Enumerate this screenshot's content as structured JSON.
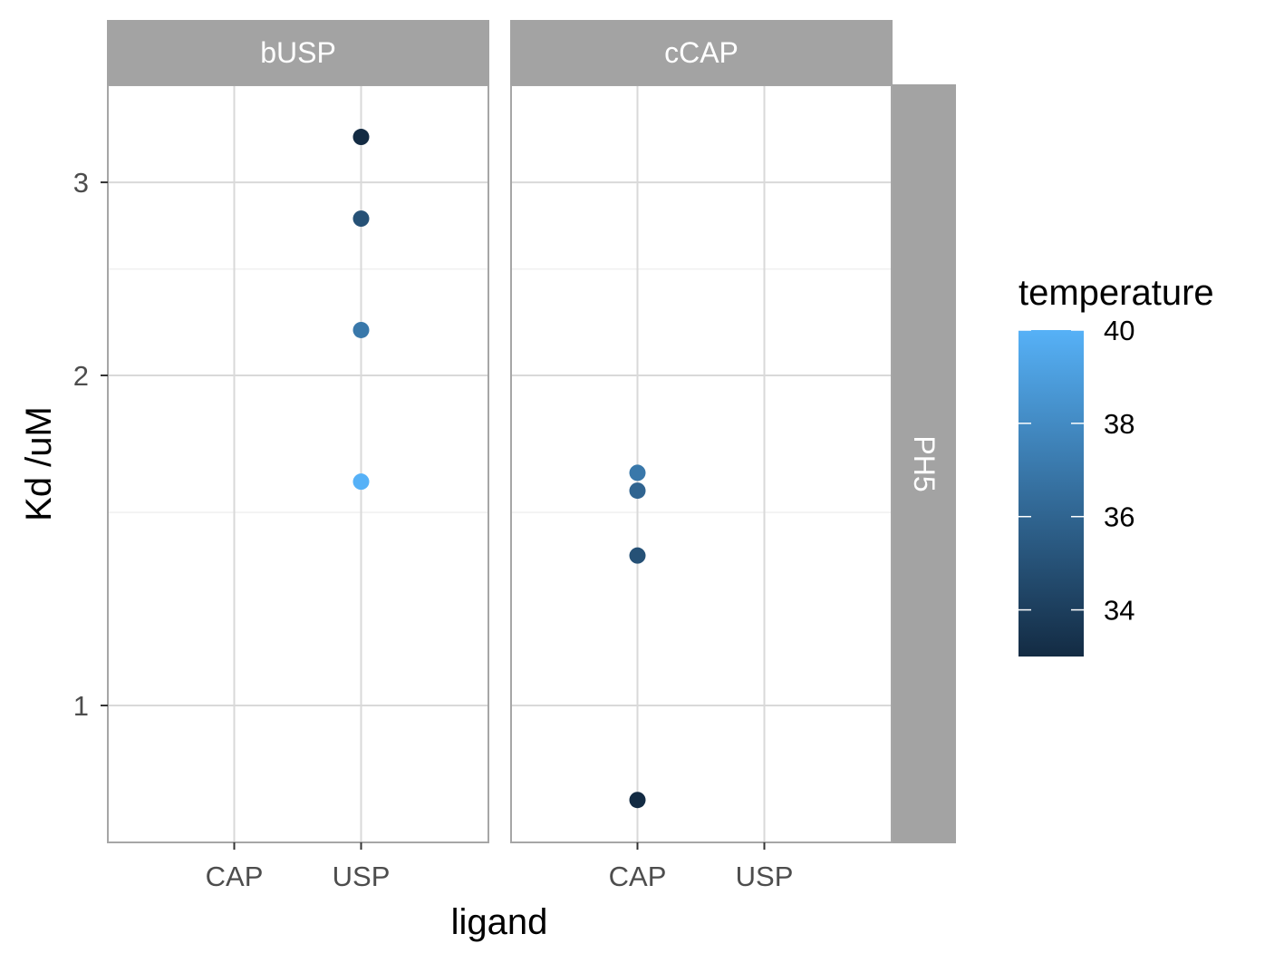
{
  "chart_data": {
    "type": "scatter",
    "facets": [
      {
        "name": "bUSP",
        "points": [
          {
            "x": "USP",
            "y": 3.3,
            "temperature": 33
          },
          {
            "x": "USP",
            "y": 2.78,
            "temperature": 35
          },
          {
            "x": "USP",
            "y": 2.2,
            "temperature": 37
          },
          {
            "x": "USP",
            "y": 1.6,
            "temperature": 40
          }
        ]
      },
      {
        "name": "cCAP",
        "points": [
          {
            "x": "CAP",
            "y": 1.63,
            "temperature": 37
          },
          {
            "x": "CAP",
            "y": 1.57,
            "temperature": 36
          },
          {
            "x": "CAP",
            "y": 1.37,
            "temperature": 35
          },
          {
            "x": "CAP",
            "y": 0.82,
            "temperature": 33
          }
        ]
      }
    ],
    "row_facet": "PH5",
    "categories": [
      "CAP",
      "USP"
    ],
    "xlabel": "ligand",
    "ylabel": "Kd /uM",
    "y_scale": "log",
    "y_ticks": [
      1,
      2,
      3
    ],
    "y_minor_ticks": [
      1.5,
      2.5
    ],
    "ylim": [
      0.78,
      3.6
    ],
    "grid": true,
    "legend": {
      "title": "temperature",
      "position": "right",
      "range": [
        33,
        40
      ],
      "labels": [
        40,
        38,
        36,
        34
      ],
      "color_low": "#132B43",
      "color_high": "#56B1F7"
    }
  }
}
